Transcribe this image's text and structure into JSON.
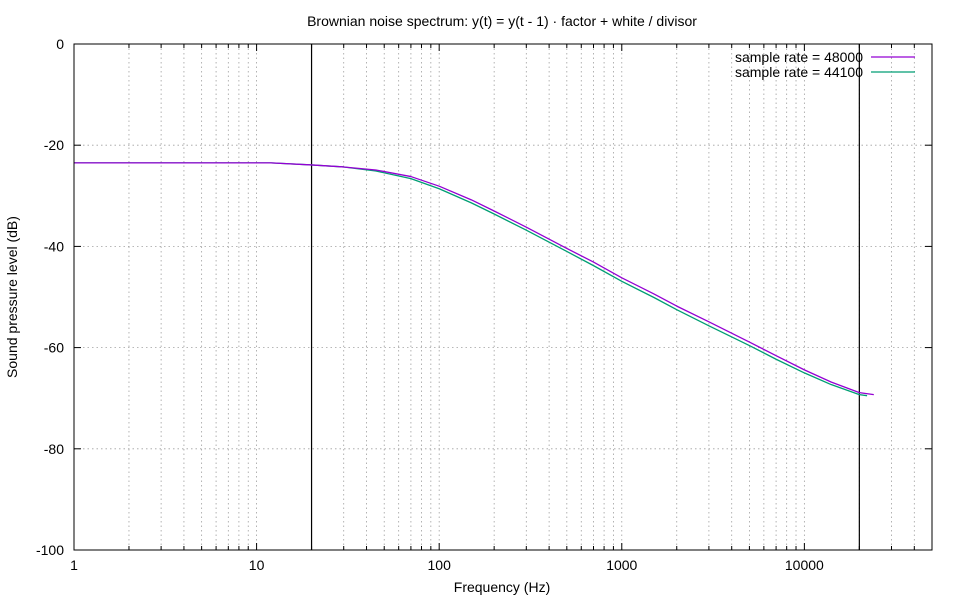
{
  "chart_data": {
    "type": "line",
    "title": "Brownian noise spectrum: y(t) = y(t - 1) · factor + white / divisor",
    "xlabel": "Frequency (Hz)",
    "ylabel": "Sound pressure level (dB)",
    "xscale": "log",
    "xlim": [
      1,
      50000
    ],
    "ylim": [
      -100,
      0
    ],
    "x_ticks": [
      {
        "value": 1,
        "label": "1"
      },
      {
        "value": 10,
        "label": "10"
      },
      {
        "value": 100,
        "label": "100"
      },
      {
        "value": 1000,
        "label": "1000"
      },
      {
        "value": 10000,
        "label": "10000"
      }
    ],
    "y_ticks": [
      {
        "value": 0,
        "label": "0"
      },
      {
        "value": -20,
        "label": "-20"
      },
      {
        "value": -40,
        "label": "-40"
      },
      {
        "value": -60,
        "label": "-60"
      },
      {
        "value": -80,
        "label": "-80"
      },
      {
        "value": -100,
        "label": "-100"
      }
    ],
    "grid": true,
    "reference_lines_x": [
      20,
      20000
    ],
    "legend_position": "top-right",
    "series": [
      {
        "name": "sample rate = 48000",
        "color": "#9400d3",
        "x": [
          1,
          5,
          12,
          20,
          30,
          45,
          70,
          100,
          150,
          200,
          300,
          500,
          700,
          1000,
          1500,
          2000,
          3000,
          5000,
          7000,
          10000,
          14000,
          20000,
          24000
        ],
        "y": [
          -23.5,
          -23.5,
          -23.5,
          -23.9,
          -24.3,
          -24.9,
          -26.2,
          -28.1,
          -30.8,
          -33.0,
          -36.2,
          -40.4,
          -43.1,
          -46.2,
          -49.4,
          -51.8,
          -54.9,
          -58.9,
          -61.6,
          -64.4,
          -66.8,
          -68.9,
          -69.3
        ]
      },
      {
        "name": "sample rate = 44100",
        "color": "#009e73",
        "x": [
          1,
          5,
          12,
          20,
          30,
          45,
          70,
          100,
          150,
          200,
          300,
          500,
          700,
          1000,
          1500,
          2000,
          3000,
          5000,
          7000,
          10000,
          14000,
          20000,
          22050
        ],
        "y": [
          -23.5,
          -23.5,
          -23.5,
          -23.9,
          -24.3,
          -25.1,
          -26.6,
          -28.6,
          -31.4,
          -33.6,
          -36.8,
          -41.0,
          -43.8,
          -46.9,
          -50.1,
          -52.5,
          -55.7,
          -59.6,
          -62.3,
          -65.0,
          -67.3,
          -69.3,
          -69.5
        ]
      }
    ]
  }
}
